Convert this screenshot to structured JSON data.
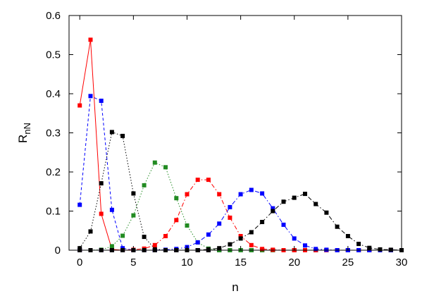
{
  "chart_data": {
    "type": "line",
    "xlabel": "n",
    "ylabel": "R",
    "ylabel_sub": "nN",
    "xlim": [
      -1,
      30
    ],
    "ylim": [
      0,
      0.6
    ],
    "xticks": [
      0,
      5,
      10,
      15,
      20,
      25,
      30
    ],
    "yticks": [
      0,
      0.1,
      0.2,
      0.3,
      0.4,
      0.5,
      0.6
    ],
    "xtick_labels": [
      "0",
      "5",
      "10",
      "15",
      "20",
      "25",
      "30"
    ],
    "ytick_labels": [
      "0",
      "0.1",
      "0.2",
      "0.3",
      "0.4",
      "0.5",
      "0.6"
    ],
    "grid": false,
    "legend": "none",
    "series": [
      {
        "color": "#ff0000",
        "line": "solid",
        "x": [
          0,
          1,
          2,
          3,
          4,
          5,
          6,
          7,
          8,
          9,
          10,
          11,
          12,
          13,
          14,
          15,
          16,
          17,
          18,
          19,
          20,
          21,
          22,
          23,
          24,
          25,
          26,
          27,
          28,
          29,
          30
        ],
        "y": [
          0.37,
          0.538,
          0.093,
          0.002,
          0,
          0,
          0,
          0,
          0,
          0,
          0,
          0,
          0,
          0,
          0,
          0,
          0,
          0,
          0,
          0,
          0,
          0,
          0,
          0,
          0,
          0,
          0,
          0,
          0,
          0,
          0
        ]
      },
      {
        "color": "#0000ff",
        "line": "dashed",
        "x": [
          0,
          1,
          2,
          3,
          4,
          5,
          6,
          7,
          8,
          9,
          10,
          11,
          12,
          13,
          14,
          15,
          16,
          17,
          18,
          19,
          20,
          21,
          22,
          23,
          24,
          25,
          26,
          27,
          28,
          29,
          30
        ],
        "y": [
          0.116,
          0.394,
          0.382,
          0.103,
          0.005,
          0,
          0,
          0,
          0,
          0,
          0,
          0,
          0,
          0,
          0,
          0,
          0,
          0,
          0,
          0,
          0,
          0,
          0,
          0,
          0,
          0,
          0,
          0,
          0,
          0,
          0
        ]
      },
      {
        "color": "#000000",
        "line": "dotted",
        "x": [
          0,
          1,
          2,
          3,
          4,
          5,
          6,
          7,
          8,
          9,
          10,
          11,
          12,
          13,
          14,
          15,
          16,
          17,
          18,
          19,
          20,
          21,
          22,
          23,
          24,
          25,
          26,
          27,
          28,
          29,
          30
        ],
        "y": [
          0.005,
          0.048,
          0.171,
          0.302,
          0.292,
          0.145,
          0.034,
          0.003,
          0,
          0,
          0,
          0,
          0,
          0,
          0,
          0,
          0,
          0,
          0,
          0,
          0,
          0,
          0,
          0,
          0,
          0,
          0,
          0,
          0,
          0,
          0
        ]
      },
      {
        "color": "#228b22",
        "line": "dotted",
        "x": [
          0,
          1,
          2,
          3,
          4,
          5,
          6,
          7,
          8,
          9,
          10,
          11,
          12,
          13,
          14,
          15,
          16,
          17,
          18,
          19,
          20,
          21,
          22,
          23,
          24,
          25,
          26,
          27,
          28,
          29,
          30
        ],
        "y": [
          0,
          0,
          0.001,
          0.01,
          0.037,
          0.089,
          0.166,
          0.224,
          0.212,
          0.133,
          0.063,
          0.02,
          0.004,
          0,
          0,
          0,
          0,
          0,
          0,
          0,
          0,
          0,
          0,
          0,
          0,
          0,
          0,
          0,
          0,
          0,
          0
        ]
      },
      {
        "color": "#ff0000",
        "line": "dashdot",
        "x": [
          0,
          1,
          2,
          3,
          4,
          5,
          6,
          7,
          8,
          9,
          10,
          11,
          12,
          13,
          14,
          15,
          16,
          17,
          18,
          19,
          20,
          21,
          22,
          23,
          24,
          25,
          26,
          27,
          28,
          29,
          30
        ],
        "y": [
          0,
          0,
          0,
          0,
          0,
          0.001,
          0.004,
          0.013,
          0.036,
          0.077,
          0.143,
          0.18,
          0.18,
          0.143,
          0.083,
          0.036,
          0.013,
          0.003,
          0.001,
          0,
          0,
          0,
          0,
          0,
          0,
          0,
          0,
          0,
          0,
          0,
          0
        ]
      },
      {
        "color": "#0000ff",
        "line": "dashdot",
        "x": [
          0,
          1,
          2,
          3,
          4,
          5,
          6,
          7,
          8,
          9,
          10,
          11,
          12,
          13,
          14,
          15,
          16,
          17,
          18,
          19,
          20,
          21,
          22,
          23,
          24,
          25,
          26,
          27,
          28,
          29,
          30
        ],
        "y": [
          0,
          0,
          0,
          0,
          0,
          0,
          0,
          0,
          0.001,
          0.003,
          0.008,
          0.02,
          0.04,
          0.068,
          0.11,
          0.143,
          0.154,
          0.145,
          0.107,
          0.065,
          0.03,
          0.012,
          0.003,
          0.001,
          0,
          0,
          0,
          0,
          0,
          0,
          0
        ]
      },
      {
        "color": "#000000",
        "line": "dashdot",
        "x": [
          0,
          1,
          2,
          3,
          4,
          5,
          6,
          7,
          8,
          9,
          10,
          11,
          12,
          13,
          14,
          15,
          16,
          17,
          18,
          19,
          20,
          21,
          22,
          23,
          24,
          25,
          26,
          27,
          28,
          29,
          30
        ],
        "y": [
          0,
          0,
          0,
          0,
          0,
          0,
          0,
          0,
          0,
          0,
          0,
          0,
          0.002,
          0.005,
          0.015,
          0.03,
          0.046,
          0.072,
          0.1,
          0.124,
          0.134,
          0.144,
          0.118,
          0.096,
          0.06,
          0.036,
          0.016,
          0.006,
          0.002,
          0.001,
          0
        ]
      }
    ]
  }
}
